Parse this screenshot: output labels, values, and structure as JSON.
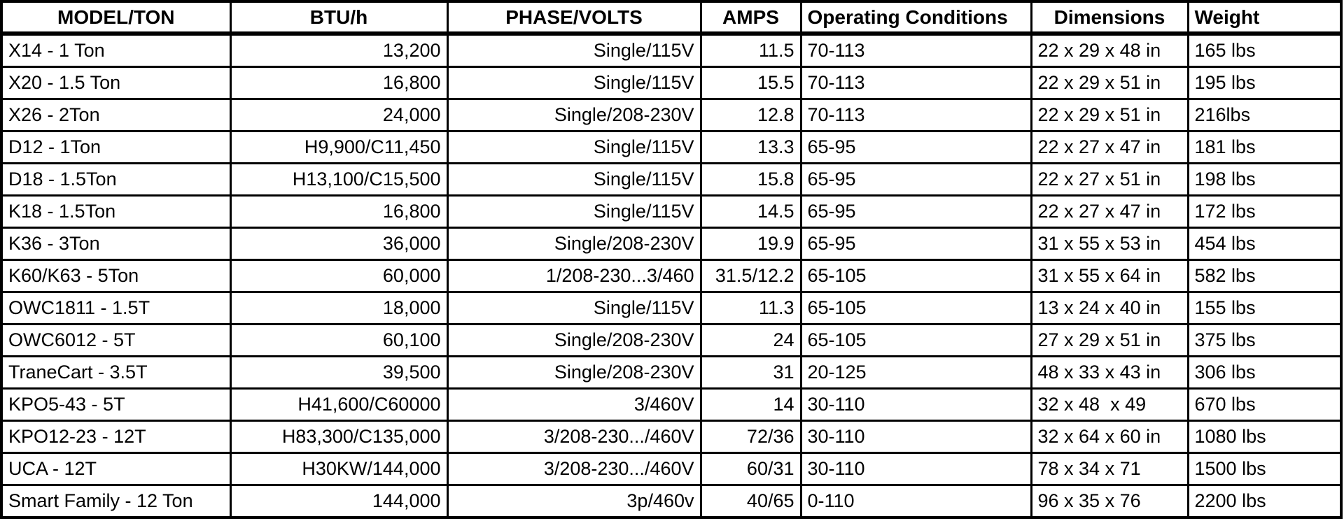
{
  "colors": {
    "text": "#000000",
    "border": "#000000",
    "background": "#ffffff"
  },
  "table": {
    "columns": [
      {
        "name": "model-ton",
        "label": "MODEL/TON",
        "header_align": "center",
        "data_align": "left"
      },
      {
        "name": "btu-h",
        "label": "BTU/h",
        "header_align": "center",
        "data_align": "right"
      },
      {
        "name": "phase-volts",
        "label": "PHASE/VOLTS",
        "header_align": "center",
        "data_align": "right"
      },
      {
        "name": "amps",
        "label": "AMPS",
        "header_align": "center",
        "data_align": "right"
      },
      {
        "name": "operating-conditions",
        "label": "Operating Conditions",
        "header_align": "left",
        "data_align": "left"
      },
      {
        "name": "dimensions",
        "label": "Dimensions",
        "header_align": "center",
        "data_align": "left"
      },
      {
        "name": "weight",
        "label": "Weight",
        "header_align": "left",
        "data_align": "left"
      }
    ],
    "rows": [
      [
        "X14 - 1 Ton",
        "13,200",
        "Single/115V",
        "11.5",
        "70-113",
        "22 x 29 x 48 in",
        "165 lbs"
      ],
      [
        "X20 - 1.5 Ton",
        "16,800",
        "Single/115V",
        "15.5",
        "70-113",
        "22 x 29 x 51 in",
        "195 lbs"
      ],
      [
        "X26 - 2Ton",
        "24,000",
        "Single/208-230V",
        "12.8",
        "70-113",
        "22 x 29 x 51 in",
        "216lbs"
      ],
      [
        "D12 - 1Ton",
        "H9,900/C11,450",
        "Single/115V",
        "13.3",
        "65-95",
        "22 x 27 x 47 in",
        "181 lbs"
      ],
      [
        "D18 - 1.5Ton",
        "H13,100/C15,500",
        "Single/115V",
        "15.8",
        "65-95",
        "22 x 27 x 51 in",
        "198 lbs"
      ],
      [
        "K18 - 1.5Ton",
        "16,800",
        "Single/115V",
        "14.5",
        "65-95",
        "22 x 27 x 47 in",
        "172 lbs"
      ],
      [
        "K36 - 3Ton",
        "36,000",
        "Single/208-230V",
        "19.9",
        "65-95",
        "31 x 55 x 53 in",
        "454 lbs"
      ],
      [
        "K60/K63 - 5Ton",
        "60,000",
        "1/208-230...3/460",
        "31.5/12.2",
        "65-105",
        "31 x 55 x 64 in",
        "582 lbs"
      ],
      [
        "OWC1811 - 1.5T",
        "18,000",
        "Single/115V",
        "11.3",
        "65-105",
        "13 x 24 x 40 in",
        "155 lbs"
      ],
      [
        "OWC6012 - 5T",
        "60,100",
        "Single/208-230V",
        "24",
        "65-105",
        "27 x 29 x 51 in",
        "375 lbs"
      ],
      [
        "TraneCart - 3.5T",
        "39,500",
        "Single/208-230V",
        "31",
        "20-125",
        "48 x 33 x 43 in",
        "306 lbs"
      ],
      [
        "KPO5-43 - 5T",
        "H41,600/C60000",
        "3/460V",
        "14",
        "30-110",
        "32 x 48  x 49",
        "670 lbs"
      ],
      [
        "KPO12-23 - 12T",
        "H83,300/C135,000",
        "3/208-230.../460V",
        "72/36",
        "30-110",
        "32 x 64 x 60 in",
        "1080 lbs"
      ],
      [
        "UCA - 12T",
        "H30KW/144,000",
        "3/208-230.../460V",
        "60/31",
        "30-110",
        "78 x 34 x 71",
        "1500 lbs"
      ],
      [
        "Smart Family - 12 Ton",
        "144,000",
        "3p/460v",
        "40/65",
        "0-110",
        "96 x 35 x 76",
        "2200 lbs"
      ]
    ]
  }
}
